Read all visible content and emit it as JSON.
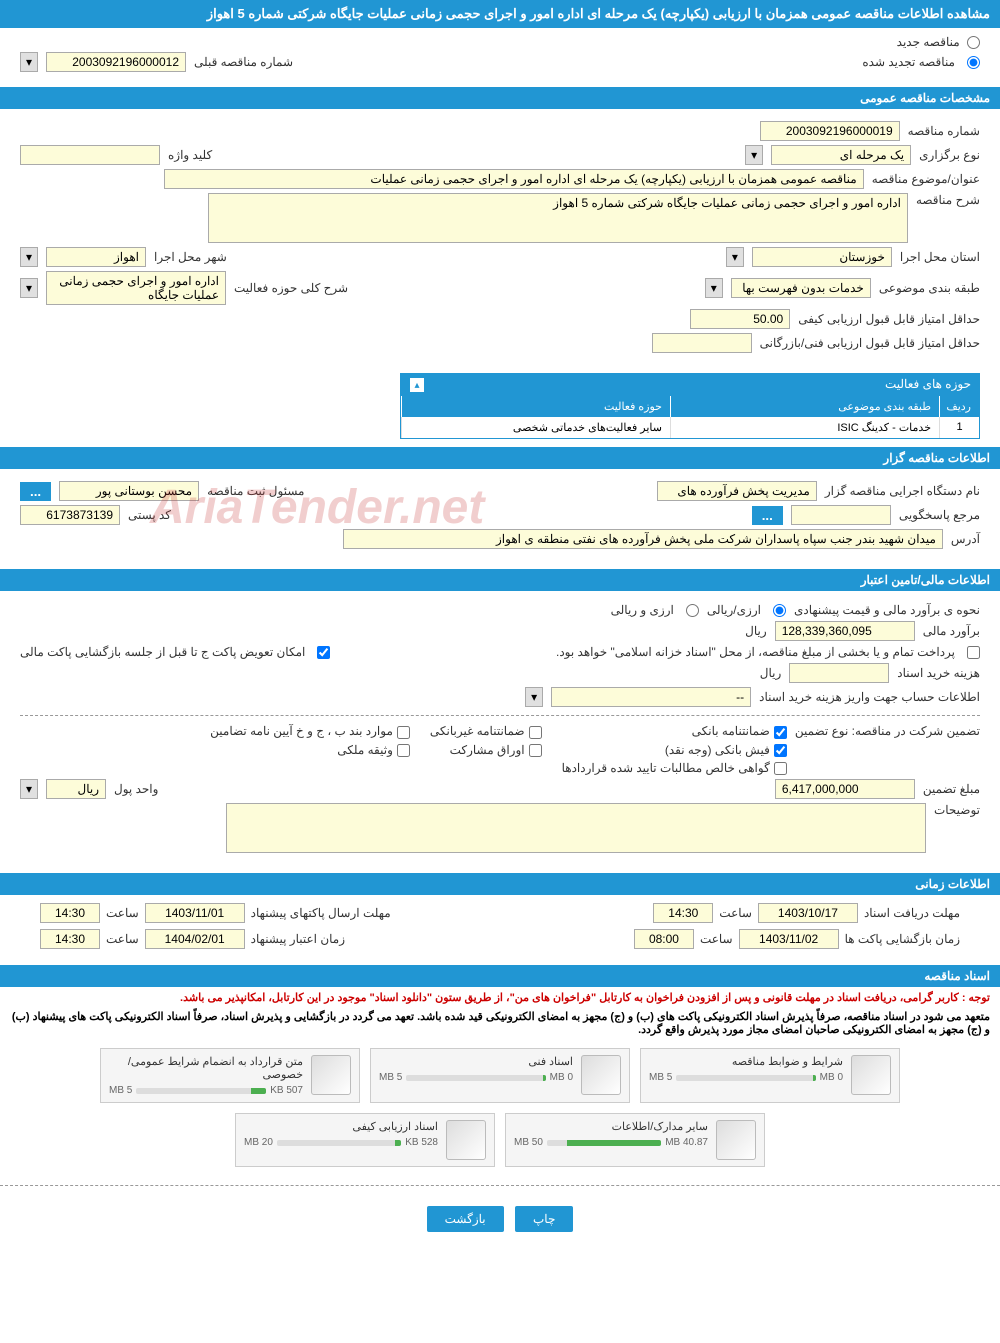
{
  "page_title": "مشاهده اطلاعات مناقصه عمومی همزمان با ارزیابی (یکپارچه) یک مرحله ای اداره امور و اجرای حجمی زمانی عملیات جایگاه شرکتی شماره 5 اهواز",
  "watermark": "AriaTender.net",
  "top_options": {
    "new_tender": "مناقصه جدید",
    "renewed_tender": "مناقصه تجدید شده",
    "prev_number_label": "شماره مناقصه قبلی",
    "prev_number": "2003092196000012"
  },
  "sections": {
    "general": "مشخصات مناقصه عمومی",
    "organizer": "اطلاعات مناقصه گزار",
    "financial": "اطلاعات مالی/تامین اعتبار",
    "timing": "اطلاعات زمانی",
    "docs": "اسناد مناقصه"
  },
  "general": {
    "tender_number_label": "شماره مناقصه",
    "tender_number": "2003092196000019",
    "type_label": "نوع برگزاری",
    "type_value": "یک مرحله ای",
    "keyword_label": "کلید واژه",
    "keyword": "",
    "title_label": "عنوان/موضوع مناقصه",
    "title_value": "مناقصه عمومی همزمان با ارزیابی (یکپارچه) یک مرحله ای اداره امور و اجرای حجمی زمانی عملیات",
    "desc_label": "شرح مناقصه",
    "desc_value": "اداره امور و اجرای حجمی زمانی عملیات جایگاه شرکتی شماره 5 اهواز",
    "province_label": "استان محل اجرا",
    "province": "خوزستان",
    "city_label": "شهر محل اجرا",
    "city": "اهواز",
    "category_label": "طبقه بندی موضوعی",
    "category": "خدمات بدون فهرست بها",
    "field_desc_label": "شرح کلی حوزه فعالیت",
    "field_desc": "اداره امور و اجرای حجمی زمانی عملیات جایگاه",
    "min_qual_label": "حداقل امتیاز قابل قبول ارزیابی کیفی",
    "min_qual": "50.00",
    "min_tech_label": "حداقل امتیاز قابل قبول ارزیابی فنی/بازرگانی",
    "min_tech": ""
  },
  "activity_table": {
    "title": "حوزه های فعالیت",
    "col_idx": "ردیف",
    "col_cat": "طبقه بندی موضوعی",
    "col_field": "حوزه فعالیت",
    "rows": [
      {
        "idx": "1",
        "cat": "خدمات - کدینگ ISIC",
        "field": "سایر فعالیت‌های خدماتی شخصی"
      }
    ]
  },
  "organizer": {
    "exec_label": "نام دستگاه اجرایی مناقصه گزار",
    "exec_value": "مدیریت پخش فرآورده های",
    "resp_label": "مسئول ثبت مناقصه",
    "resp_value": "محسن بوستانی پور",
    "contact_label": "مرجع پاسخگویی",
    "contact_value": "",
    "postal_label": "کد پستی",
    "postal_value": "6173873139",
    "address_label": "آدرس",
    "address_value": "میدان شهید بندر جنب سپاه پاسداران شرکت ملی پخش فرآورده های نفتی منطقه ی اهواز"
  },
  "financial": {
    "method_label": "نحوه ی برآورد مالی و قیمت پیشنهادی",
    "opt_currency": "ارزی/ریالی",
    "opt_mixed": "ارزی و ریالی",
    "estimate_label": "برآورد مالی",
    "estimate_value": "128,339,360,095",
    "unit_rial": "ریال",
    "payment_note": "پرداخت تمام و یا بخشی از مبلغ مناقصه، از محل \"اسناد خزانه اسلامی\" خواهد بود.",
    "swap_note": "امکان تعویض پاکت ج تا قبل از جلسه بازگشایی پاکت مالی",
    "doc_cost_label": "هزینه خرید اسناد",
    "doc_cost_value": "",
    "account_label": "اطلاعات حساب جهت واریز هزینه خرید اسناد",
    "account_value": "--",
    "guarantee_type_label": "تضمین شرکت در مناقصه:   نوع تضمین",
    "g_bank": "ضمانتنامه بانکی",
    "g_nonbank": "ضمانتنامه غیربانکی",
    "g_items": "موارد بند ب ، ج و خ آیین نامه تضامین",
    "g_fish": "فیش بانکی (وجه نقد)",
    "g_securities": "اوراق مشارکت",
    "g_property": "وثیقه ملکی",
    "g_receivables": "گواهی خالص مطالبات تایید شده قراردادها",
    "guarantee_amount_label": "مبلغ تضمین",
    "guarantee_amount": "6,417,000,000",
    "currency_unit_label": "واحد پول",
    "currency_unit": "ریال",
    "remarks_label": "توضیحات",
    "remarks_value": ""
  },
  "timing": {
    "receive_label": "مهلت دریافت اسناد",
    "receive_date": "1403/10/17",
    "receive_time_label": "ساعت",
    "receive_time": "14:30",
    "submit_label": "مهلت ارسال پاکتهای پیشنهاد",
    "submit_date": "1403/11/01",
    "submit_time_label": "ساعت",
    "submit_time": "14:30",
    "open_label": "زمان بازگشایی پاکت ها",
    "open_date": "1403/11/02",
    "open_time_label": "ساعت",
    "open_time": "08:00",
    "valid_label": "زمان اعتبار پیشنهاد",
    "valid_date": "1404/02/01",
    "valid_time_label": "ساعت",
    "valid_time": "14:30"
  },
  "docs": {
    "notice1": "توجه : کاربر گرامی، دریافت اسناد در مهلت قانونی و پس از افزودن فراخوان به کارتابل \"فراخوان های من\"، از طریق ستون \"دانلود اسناد\" موجود در این کارتابل، امکانپذیر می باشد.",
    "notice2": "متعهد می شود در اسناد مناقصه، صرفاً پذیرش اسناد الکترونیکی پاکت های (ب) و (ج) مجهز به امضای الکترونیکی قید شده باشد. تعهد می گردد در بازگشایی و پذیرش اسناد، صرفاً اسناد الکترونیکی پاکت های پیشنهاد (ب) و (ج) مجهز به امضای الکترونیکی صاحبان امضای مجاز مورد پذیرش واقع گردد.",
    "items": [
      {
        "title": "شرایط و ضوابط مناقصه",
        "size": "0 MB",
        "max": "5 MB",
        "pct": 2
      },
      {
        "title": "اسناد فنی",
        "size": "0 MB",
        "max": "5 MB",
        "pct": 2
      },
      {
        "title": "متن قرارداد به انضمام شرایط عمومی/خصوصی",
        "size": "507 KB",
        "max": "5 MB",
        "pct": 12
      },
      {
        "title": "سایر مدارک/اطلاعات",
        "size": "40.87 MB",
        "max": "50 MB",
        "pct": 82
      },
      {
        "title": "اسناد ارزیابی کیفی",
        "size": "528 KB",
        "max": "20 MB",
        "pct": 5
      }
    ]
  },
  "buttons": {
    "print": "چاپ",
    "back": "بازگشت"
  },
  "colors": {
    "primary": "#2196d3",
    "input_bg": "#fdfcd9",
    "notice": "#c00"
  }
}
